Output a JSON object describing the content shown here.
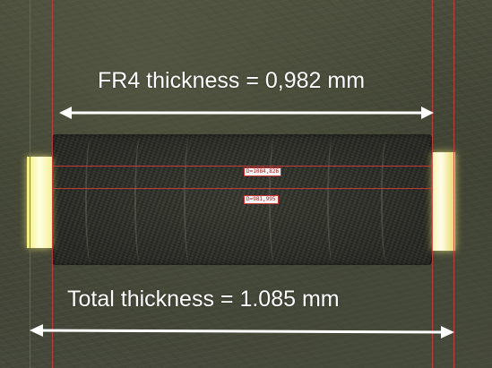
{
  "image": {
    "description_colors": {
      "background": "#3f4232",
      "copper_layer": "#f7f09a",
      "measure_line": "#d23c3c",
      "annotation": "#ffffff"
    }
  },
  "annotations": {
    "fr4_label": "FR4 thickness = 0,982 mm",
    "total_label": "Total thickness = 1.085 mm"
  },
  "measurements": {
    "readout_1": "D=1084,826",
    "readout_2": "D=981,995"
  }
}
